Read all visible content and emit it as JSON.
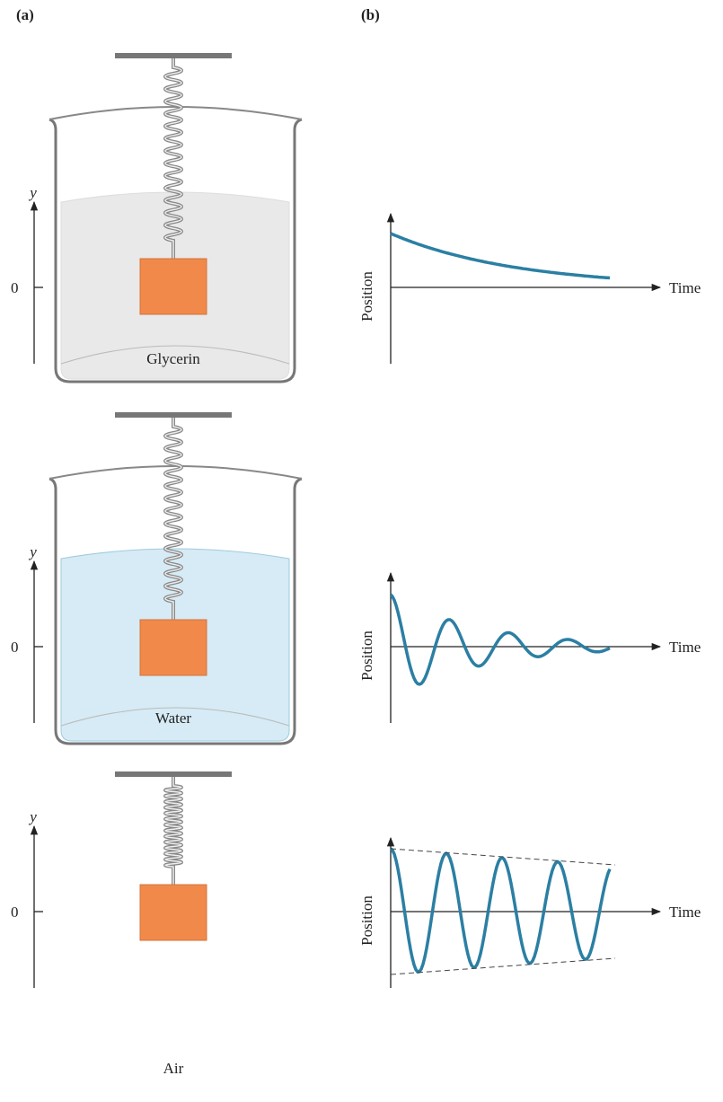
{
  "header": {
    "label_a": "(a)",
    "label_b": "(b)"
  },
  "panels": [
    {
      "medium": "Glycerin",
      "axis_label": "y",
      "zero_label": "0",
      "graph": {
        "y_label": "Position",
        "x_label": "Time"
      }
    },
    {
      "medium": "Water",
      "axis_label": "y",
      "zero_label": "0",
      "graph": {
        "y_label": "Position",
        "x_label": "Time"
      }
    },
    {
      "medium": "Air",
      "axis_label": "y",
      "zero_label": "0",
      "graph": {
        "y_label": "Position",
        "x_label": "Time"
      }
    }
  ]
}
